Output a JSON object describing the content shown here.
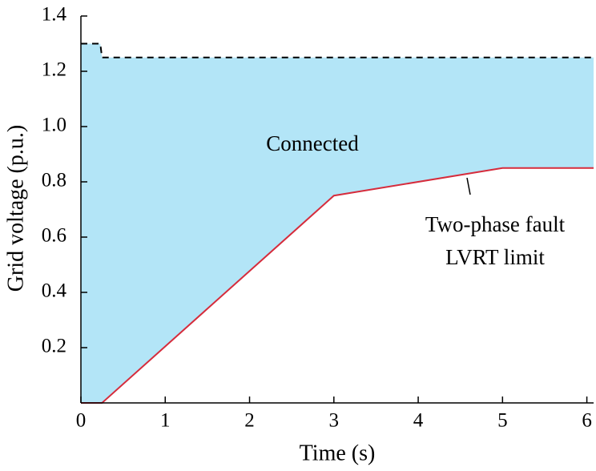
{
  "chart_data": {
    "type": "line",
    "xlabel": "Time (s)",
    "ylabel": "Grid voltage (p.u.)",
    "xlim": [
      0,
      6.08
    ],
    "ylim": [
      0,
      1.4
    ],
    "xticks": [
      0,
      1,
      2,
      3,
      4,
      5,
      6
    ],
    "yticks": [
      0.2,
      0.4,
      0.6,
      0.8,
      {
        "value": 1.0,
        "label": "1.0"
      },
      1.2,
      1.4
    ],
    "fill_color": "#b3e5f7",
    "series": [
      {
        "color": "#d62c3c",
        "dash": false,
        "x": [
          0,
          0.25,
          3,
          5,
          6.08
        ],
        "values": [
          0,
          0,
          0.75,
          0.85,
          0.85
        ]
      },
      {
        "color": "#000000",
        "dash": true,
        "x": [
          0,
          0.23,
          0.25,
          6.08
        ],
        "values": [
          1.3,
          1.3,
          1.25,
          1.25
        ]
      }
    ],
    "annotations": [
      "Connected",
      "Two-phase fault",
      "LVRT limit"
    ]
  }
}
